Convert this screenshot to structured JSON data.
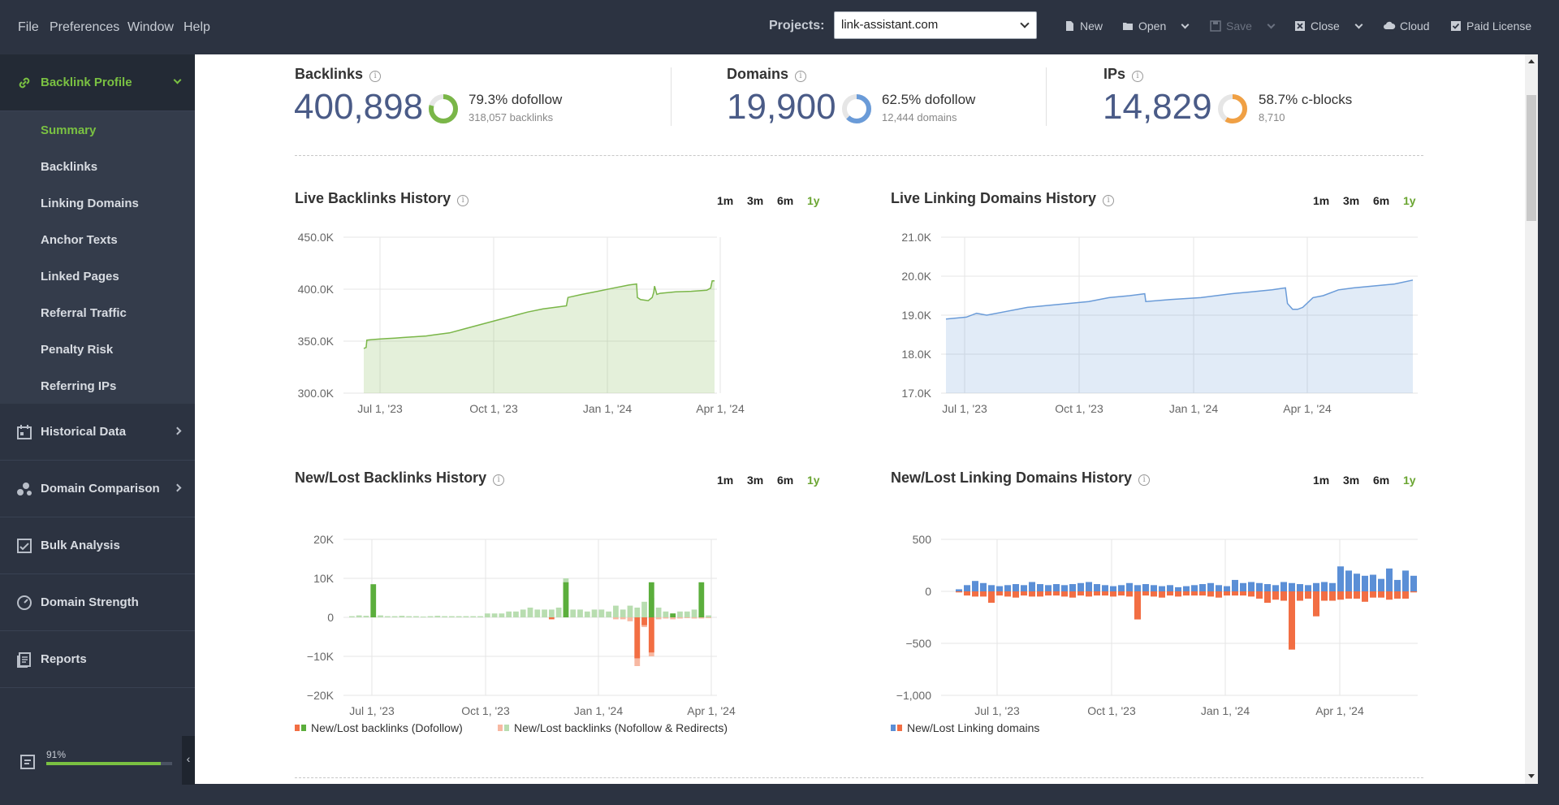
{
  "menu": {
    "file": "File",
    "preferences": "Preferences",
    "window": "Window",
    "help": "Help"
  },
  "toolbar": {
    "projects_label": "Projects:",
    "project_value": "link-assistant.com",
    "new": "New",
    "open": "Open",
    "save": "Save",
    "close": "Close",
    "cloud": "Cloud",
    "license": "Paid License"
  },
  "sidebar": {
    "active_section": "Backlink Profile",
    "sub_items": [
      "Summary",
      "Backlinks",
      "Linking Domains",
      "Anchor Texts",
      "Linked Pages",
      "Referral Traffic",
      "Penalty Risk",
      "Referring IPs"
    ],
    "sections": [
      "Historical Data",
      "Domain Comparison",
      "Bulk Analysis",
      "Domain Strength",
      "Reports"
    ],
    "progress_label": "91%",
    "progress_value": 0.91,
    "collapse_glyph": "‹"
  },
  "stats": {
    "backlinks": {
      "title": "Backlinks",
      "value": "400,898",
      "pct_text": "79.3% dofollow",
      "pct": 0.793,
      "sub": "318,057 backlinks",
      "color": "#7ab648"
    },
    "domains": {
      "title": "Domains",
      "value": "19,900",
      "pct_text": "62.5% dofollow",
      "pct": 0.625,
      "sub": "12,444 domains",
      "color": "#6a9bd8"
    },
    "ips": {
      "title": "IPs",
      "value": "14,829",
      "pct_text": "58.7% c-blocks",
      "pct": 0.587,
      "sub": "8,710",
      "color": "#f0a044"
    }
  },
  "ranges": [
    "1m",
    "3m",
    "6m",
    "1y"
  ],
  "active_range": "1y",
  "info_glyph": "i",
  "charts": {
    "live_backlinks": {
      "title": "Live Backlinks History"
    },
    "live_domains": {
      "title": "Live Linking Domains History"
    },
    "newlost_backlinks": {
      "title": "New/Lost Backlinks History",
      "legend1": "New/Lost backlinks (Dofollow)",
      "legend2": "New/Lost backlinks (Nofollow & Redirects)"
    },
    "newlost_domains": {
      "title": "New/Lost Linking Domains History",
      "legend1": "New/Lost Linking domains"
    }
  },
  "chart_data": [
    {
      "type": "area",
      "title": "Live Backlinks History",
      "x_ticks": [
        "Jul 1, '23",
        "Oct 1, '23",
        "Jan 1, '24",
        "Apr 1, '24"
      ],
      "y_ticks": [
        "300.0K",
        "350.0K",
        "400.0K",
        "450.0K"
      ],
      "ylim": [
        300000,
        450000
      ],
      "color": "#7ab648",
      "x": [
        0,
        3,
        4,
        10,
        20,
        30,
        40,
        50,
        60,
        70,
        80,
        90,
        100,
        110,
        130,
        150,
        170,
        190,
        210,
        230,
        250,
        260,
        262,
        280,
        300,
        320,
        340,
        350,
        351,
        355,
        365,
        370,
        372,
        373,
        376,
        380,
        400,
        420,
        440,
        445,
        447,
        450
      ],
      "values": [
        343000,
        344000,
        351000,
        351500,
        352000,
        352500,
        353000,
        353500,
        354000,
        354500,
        355000,
        356000,
        357000,
        358000,
        362000,
        366000,
        370000,
        374000,
        378000,
        381000,
        383000,
        384000,
        392000,
        395000,
        398000,
        401000,
        404000,
        405000,
        392000,
        390000,
        389000,
        392000,
        397000,
        403000,
        395000,
        396000,
        397500,
        398000,
        399000,
        401000,
        408000,
        408000
      ]
    },
    {
      "type": "area",
      "title": "Live Linking Domains History",
      "x_ticks": [
        "Jul 1, '23",
        "Oct 1, '23",
        "Jan 1, '24",
        "Apr 1, '24"
      ],
      "y_ticks": [
        "17.0K",
        "18.0K",
        "19.0K",
        "20.0K",
        "21.0K"
      ],
      "ylim": [
        17000,
        21000
      ],
      "color": "#6a9bd8",
      "x": [
        0,
        20,
        30,
        40,
        60,
        80,
        100,
        120,
        140,
        160,
        180,
        195,
        196,
        220,
        250,
        280,
        300,
        320,
        333,
        335,
        340,
        345,
        350,
        360,
        370,
        385,
        400,
        420,
        440,
        458
      ],
      "values": [
        18900,
        18950,
        19050,
        19000,
        19100,
        19200,
        19250,
        19300,
        19350,
        19450,
        19500,
        19550,
        19350,
        19400,
        19450,
        19550,
        19600,
        19650,
        19700,
        19300,
        19150,
        19150,
        19200,
        19450,
        19500,
        19650,
        19700,
        19750,
        19800,
        19900
      ]
    },
    {
      "type": "bar",
      "title": "New/Lost Backlinks History",
      "x_ticks": [
        "Jul 1, '23",
        "Oct 1, '23",
        "Jan 1, '24",
        "Apr 1, '24"
      ],
      "y_ticks": [
        "−20K",
        "−10K",
        "0",
        "10K",
        "20K"
      ],
      "ylim": [
        -20000,
        20000
      ],
      "series": [
        {
          "name": "New/Lost backlinks (Dofollow)",
          "new": [
            0,
            0,
            0,
            8500,
            0,
            0,
            0,
            0,
            0,
            0,
            0,
            0,
            0,
            0,
            0,
            0,
            0,
            0,
            0,
            0,
            0,
            0,
            0,
            0,
            0,
            0,
            0,
            0,
            0,
            0,
            9000,
            0,
            0,
            0,
            0,
            0,
            0,
            0,
            0,
            0,
            0,
            0,
            9000,
            0,
            0,
            1000,
            0,
            0,
            0,
            9000,
            0
          ],
          "lost": [
            0,
            0,
            0,
            0,
            0,
            0,
            0,
            0,
            0,
            0,
            0,
            0,
            0,
            0,
            0,
            0,
            0,
            0,
            0,
            0,
            0,
            0,
            0,
            0,
            0,
            0,
            0,
            0,
            -500,
            0,
            0,
            0,
            0,
            0,
            0,
            0,
            0,
            0,
            0,
            0,
            -10500,
            -2000,
            -9000,
            0,
            0,
            0,
            0,
            0,
            0,
            0,
            0
          ]
        },
        {
          "name": "New/Lost backlinks (Nofollow & Redirects)",
          "new": [
            300,
            500,
            400,
            400,
            500,
            300,
            300,
            400,
            300,
            300,
            200,
            300,
            400,
            300,
            300,
            300,
            300,
            300,
            300,
            1000,
            1000,
            1000,
            1500,
            1500,
            2000,
            2500,
            2000,
            2000,
            2000,
            2500,
            10000,
            2000,
            2000,
            1500,
            2000,
            2000,
            1500,
            3000,
            2000,
            3000,
            2500,
            4000,
            5000,
            2500,
            1500,
            1000,
            1500,
            1500,
            2000,
            1000,
            500
          ],
          "lost": [
            0,
            0,
            0,
            0,
            0,
            0,
            0,
            0,
            0,
            0,
            0,
            0,
            0,
            0,
            0,
            0,
            0,
            0,
            0,
            0,
            0,
            0,
            0,
            0,
            0,
            0,
            0,
            0,
            0,
            0,
            0,
            0,
            0,
            0,
            0,
            0,
            0,
            -500,
            -500,
            -1000,
            -12500,
            -2500,
            -10000,
            -500,
            -300,
            -500,
            -300,
            -200,
            -300,
            -300,
            -200
          ]
        }
      ]
    },
    {
      "type": "bar",
      "title": "New/Lost Linking Domains History",
      "x_ticks": [
        "Jul 1, '23",
        "Oct 1, '23",
        "Jan 1, '24",
        "Apr 1, '24"
      ],
      "y_ticks": [
        "−1,000",
        "−500",
        "0",
        "500"
      ],
      "ylim": [
        -1000,
        500
      ],
      "series": [
        {
          "name": "New/Lost Linking domains",
          "new": [
            20,
            60,
            100,
            80,
            60,
            50,
            60,
            70,
            60,
            90,
            70,
            60,
            70,
            60,
            70,
            80,
            90,
            70,
            60,
            50,
            60,
            80,
            60,
            70,
            60,
            50,
            60,
            40,
            50,
            60,
            70,
            80,
            60,
            50,
            110,
            80,
            90,
            80,
            70,
            60,
            90,
            80,
            70,
            60,
            80,
            90,
            80,
            240,
            200,
            170,
            150,
            160,
            120,
            220,
            110,
            200,
            150
          ],
          "lost": [
            -10,
            -40,
            -50,
            -50,
            -110,
            -40,
            -50,
            -60,
            -40,
            -50,
            -50,
            -40,
            -40,
            -50,
            -60,
            -40,
            -50,
            -40,
            -40,
            -50,
            -40,
            -50,
            -270,
            -40,
            -50,
            -60,
            -40,
            -50,
            -40,
            -40,
            -40,
            -50,
            -60,
            -40,
            -40,
            -40,
            -50,
            -70,
            -110,
            -80,
            -90,
            -560,
            -90,
            -70,
            -240,
            -90,
            -90,
            -80,
            -70,
            -70,
            -100,
            -60,
            -60,
            -80,
            -70,
            -70,
            -10
          ]
        }
      ],
      "new_color": "#5b8fd6",
      "lost_color": "#f26e43"
    }
  ]
}
